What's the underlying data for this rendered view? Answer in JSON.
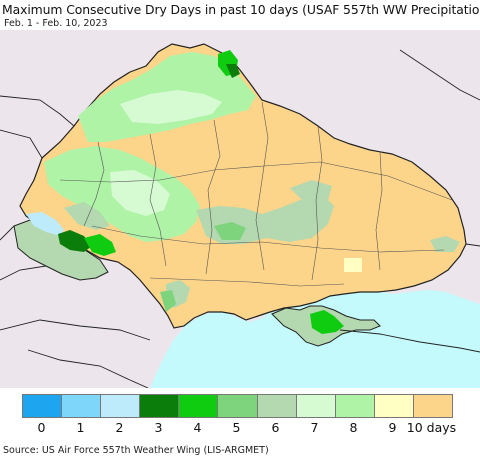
{
  "header": {
    "title": "Maximum Consecutive Dry Days in past 10 days (USAF 557th WW Precipitation)",
    "date_range": "Feb. 1 - Feb. 10, 2023"
  },
  "legend": {
    "items": [
      {
        "label": "0",
        "color": "#1ea5f0"
      },
      {
        "label": "1",
        "color": "#7fd6fb"
      },
      {
        "label": "2",
        "color": "#bdebfb"
      },
      {
        "label": "3",
        "color": "#0b7d0b"
      },
      {
        "label": "4",
        "color": "#10cc10"
      },
      {
        "label": "5",
        "color": "#7dd47d"
      },
      {
        "label": "6",
        "color": "#b4d8b0"
      },
      {
        "label": "7",
        "color": "#d6fbd2"
      },
      {
        "label": "8",
        "color": "#aef3a6"
      },
      {
        "label": "9",
        "color": "#ffffc4"
      },
      {
        "label": "10 days",
        "color": "#fdd58a"
      }
    ]
  },
  "colors": {
    "sea": "#c4fafc",
    "outside_land": "#ece6ec",
    "border": "#222222",
    "oblast_border": "#555555"
  },
  "footer": {
    "source": "Source: US Air Force 557th Weather Wing (LIS-ARGMET)"
  }
}
